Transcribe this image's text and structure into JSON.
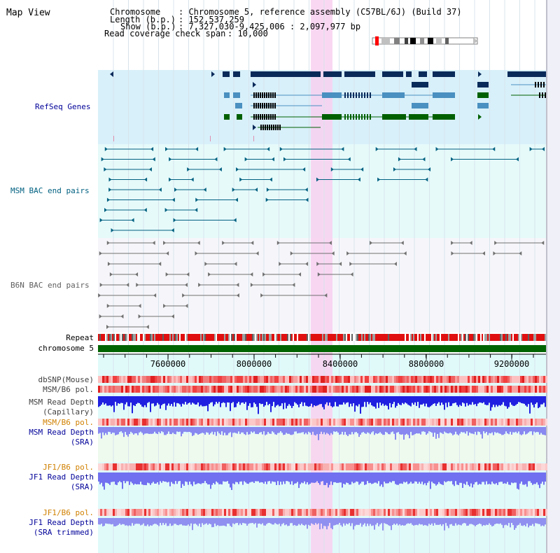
{
  "app": {
    "title": "Map View"
  },
  "info": {
    "chromosome_key": "Chromosome",
    "chromosome_value": ": Chromosome 5, reference assembly (C57BL/6J) (Build 37)",
    "length_key": "Length (b.p.)",
    "length_value": ": 152,537,259",
    "show_key": "Show (b.p.)",
    "show_value": ": 7,327,030-9,425,006 : 2,097,977 bp",
    "coverage_key": "Read coverage check span",
    "coverage_value": ": 10,000"
  },
  "tracks": {
    "refseq": "RefSeq Genes",
    "msm_bac": "MSM BAC end pairs",
    "b6n_bac": "B6N BAC end pairs",
    "repeat": "Repeat",
    "chromosome": "chromosome 5",
    "dbsnp": "dbSNP(Mouse)",
    "msm_b6_pol_1": "MSM/B6 pol.",
    "msm_depth_cap_1": "MSM Read Depth",
    "msm_depth_cap_2": "(Capillary)",
    "msm_b6_pol_2": "MSM/B6 pol.",
    "msm_depth_sra_1": "MSM Read Depth",
    "msm_depth_sra_2": "(SRA)",
    "jf1_b6_pol_1": "JF1/B6 pol.",
    "jf1_depth_sra_1": "JF1 Read Depth",
    "jf1_depth_sra_2": "(SRA)",
    "jf1_b6_pol_2": "JF1/B6 pol.",
    "jf1_depth_trim_1": "JF1 Read Depth",
    "jf1_depth_trim_2": "(SRA trimmed)"
  },
  "axis": {
    "ticks": [
      "7600000",
      "8000000",
      "8400000",
      "8800000",
      "9200000"
    ]
  },
  "colors": {
    "refseq_band": "#d8f0fa",
    "msm_band": "#e6fafa",
    "b6n_band": "#f6f6fa",
    "lower_band": "#e0fafa",
    "highlight": "#f8d0f0",
    "gene_dark": "#0a2a5a",
    "gene_mid": "#4a90c0",
    "gene_green": "#006000",
    "msm_pair": "#006080",
    "b6n_pair": "#707070",
    "chrom": "#006400",
    "label_blue": "#000099",
    "label_orange": "#d08000",
    "label_teal": "#006080"
  }
}
